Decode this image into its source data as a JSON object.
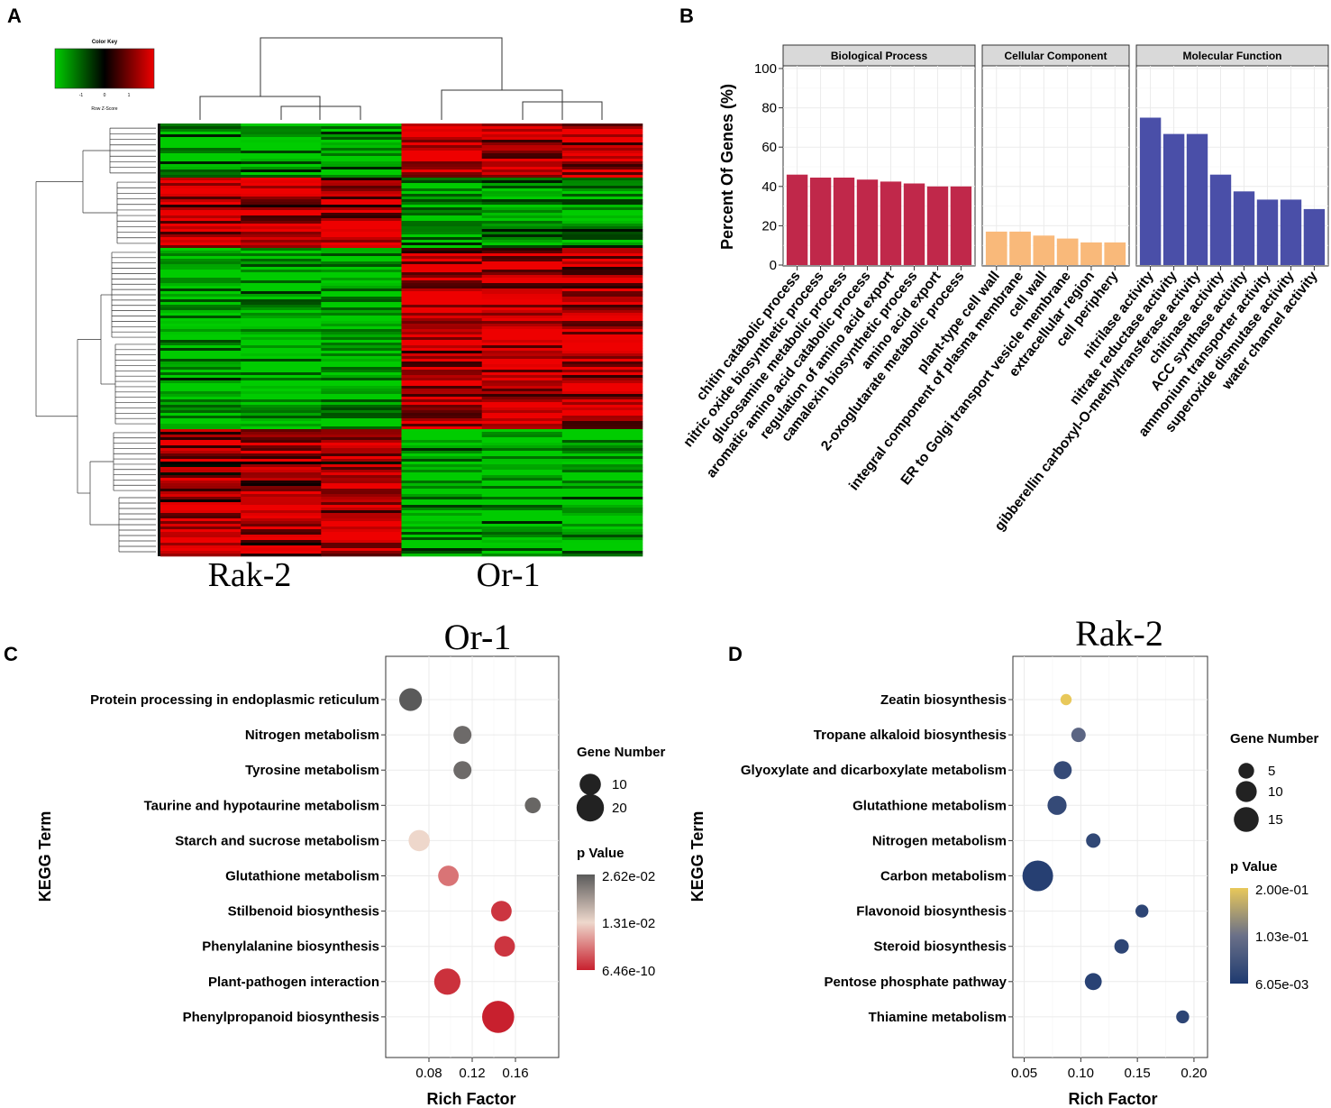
{
  "panel_labels": {
    "a": "A",
    "b": "B",
    "c": "C",
    "d": "D"
  },
  "colors": {
    "heat_low": "#00cc00",
    "heat_mid": "#000000",
    "heat_high": "#ee0000",
    "bp": "#c0284a",
    "cc": "#f9b97a",
    "mf": "#4a4fa8",
    "c_high": "#5a5a5a",
    "c_mid": "#eed8cc",
    "c_low": "#c8202e",
    "d_high": "#e8c85a",
    "d_mid": "#6a7088",
    "d_low": "#1e3a70"
  },
  "chart_data": [
    {
      "type": "heatmap",
      "panel": "A",
      "color_key": {
        "title": "Color Key",
        "ticks": [
          "-1",
          "0",
          "1"
        ],
        "xlabel": "Row Z-Score"
      },
      "groups": [
        "Rak-2",
        "Or-1"
      ],
      "columns": 6,
      "column_clusters": [
        "Rak-2",
        "Rak-2",
        "Rak-2",
        "Or-1",
        "Or-1",
        "Or-1"
      ],
      "row_blocks": [
        {
          "pattern": "low in Rak-2, high in Or-1",
          "rak2_z": -0.8,
          "or1_z": 0.8
        },
        {
          "pattern": "high in Rak-2, low in Or-1",
          "rak2_z": 0.8,
          "or1_z": -0.8
        },
        {
          "pattern": "low in Rak-2, high in Or-1",
          "rak2_z": -0.9,
          "or1_z": 0.8
        },
        {
          "pattern": "high in Rak-2, low in Or-1",
          "rak2_z": 0.7,
          "or1_z": -0.9
        }
      ]
    },
    {
      "type": "bar",
      "panel": "B",
      "ylabel": "Percent Of Genes (%)",
      "ylim": [
        0,
        100
      ],
      "yticks": [
        "0",
        "20",
        "40",
        "60",
        "80",
        "100"
      ],
      "facets": [
        {
          "name": "Biological Process",
          "color_key": "bp",
          "categories": [
            "chitin catabolic process",
            "nitric oxide biosynthetic process",
            "glucosamine metabolic process",
            "aromatic amino acid catabolic process",
            "regulation of amino acid export",
            "camalexin biosynthetic process",
            "amino acid export",
            "2-oxoglutarate metabolic process"
          ],
          "values": [
            46,
            44.5,
            44.5,
            43.5,
            42.5,
            41.5,
            40,
            40
          ]
        },
        {
          "name": "Cellular Component",
          "color_key": "cc",
          "categories": [
            "plant-type cell wall",
            "integral component of plasma membrane",
            "cell wall",
            "ER to Golgi transport vesicle membrane",
            "extracellular region",
            "cell periphery"
          ],
          "values": [
            17,
            17,
            15,
            13.5,
            11.5,
            11.5
          ]
        },
        {
          "name": "Molecular Function",
          "color_key": "mf",
          "categories": [
            "nitrilase activity",
            "nitrate reductase activity",
            "gibberellin carboxyl-O-methyltransferase activity",
            "chitinase activity",
            "ACC synthase activity",
            "ammonium transporter activity",
            "superoxide dismutase activity",
            "water channel activity"
          ],
          "values": [
            75,
            66.7,
            66.7,
            46,
            37.5,
            33.3,
            33.3,
            28.5
          ]
        }
      ]
    },
    {
      "type": "scatter",
      "panel": "C",
      "title": "Or-1",
      "xlabel": "Rich Factor",
      "ylabel": "KEGG Term",
      "xlim": [
        0.04,
        0.2
      ],
      "xticks": [
        0.08,
        0.12,
        0.16
      ],
      "xtick_labels": [
        "0.08",
        "0.12",
        "0.16"
      ],
      "size_legend": {
        "title": "Gene Number",
        "values": [
          10,
          20
        ],
        "labels": [
          "10",
          "20"
        ]
      },
      "color_legend": {
        "title": "p Value",
        "labels": [
          "2.62e-02",
          "1.31e-02",
          "6.46e-10"
        ],
        "pmax": 0.0262
      },
      "terms": [
        "Protein processing in endoplasmic reticulum",
        "Nitrogen metabolism",
        "Tyrosine metabolism",
        "Taurine and hypotaurine metabolism",
        "Starch and sucrose metabolism",
        "Glutathione metabolism",
        "Stilbenoid biosynthesis",
        "Phenylalanine biosynthesis",
        "Plant-pathogen interaction",
        "Phenylpropanoid biosynthesis"
      ],
      "rich_factor": [
        0.063,
        0.111,
        0.111,
        0.176,
        0.071,
        0.098,
        0.147,
        0.15,
        0.097,
        0.144
      ],
      "gene_number": [
        12,
        6,
        6,
        4,
        10,
        9,
        9,
        9,
        18,
        30
      ],
      "p_value": [
        0.0262,
        0.0245,
        0.0245,
        0.025,
        0.013,
        0.006,
        0.0015,
        0.0015,
        0.0012,
        6e-10
      ]
    },
    {
      "type": "scatter",
      "panel": "D",
      "title": "Rak-2",
      "xlabel": "Rich Factor",
      "ylabel": "KEGG Term",
      "xlim": [
        0.04,
        0.212
      ],
      "xticks": [
        0.05,
        0.1,
        0.15,
        0.2
      ],
      "xtick_labels": [
        "0.05",
        "0.10",
        "0.15",
        "0.20"
      ],
      "size_legend": {
        "title": "Gene Number",
        "values": [
          5,
          10,
          15
        ],
        "labels": [
          "5",
          "10",
          "15"
        ]
      },
      "color_legend": {
        "title": "p Value",
        "labels": [
          "2.00e-01",
          "1.03e-01",
          "6.05e-03"
        ],
        "pmax": 0.2
      },
      "terms": [
        "Zeatin biosynthesis",
        "Tropane alkaloid biosynthesis",
        "Glyoxylate and dicarboxylate metabolism",
        "Glutathione metabolism",
        "Nitrogen metabolism",
        "Carbon metabolism",
        "Flavonoid biosynthesis",
        "Steroid biosynthesis",
        "Pentose phosphate pathway",
        "Thiamine metabolism"
      ],
      "rich_factor": [
        0.087,
        0.098,
        0.084,
        0.079,
        0.111,
        0.062,
        0.154,
        0.136,
        0.111,
        0.19
      ],
      "gene_number": [
        2,
        4,
        7,
        8,
        4,
        24,
        3,
        4,
        6,
        3
      ],
      "p_value": [
        0.2,
        0.08,
        0.03,
        0.03,
        0.025,
        0.01,
        0.02,
        0.02,
        0.015,
        0.02
      ]
    }
  ]
}
